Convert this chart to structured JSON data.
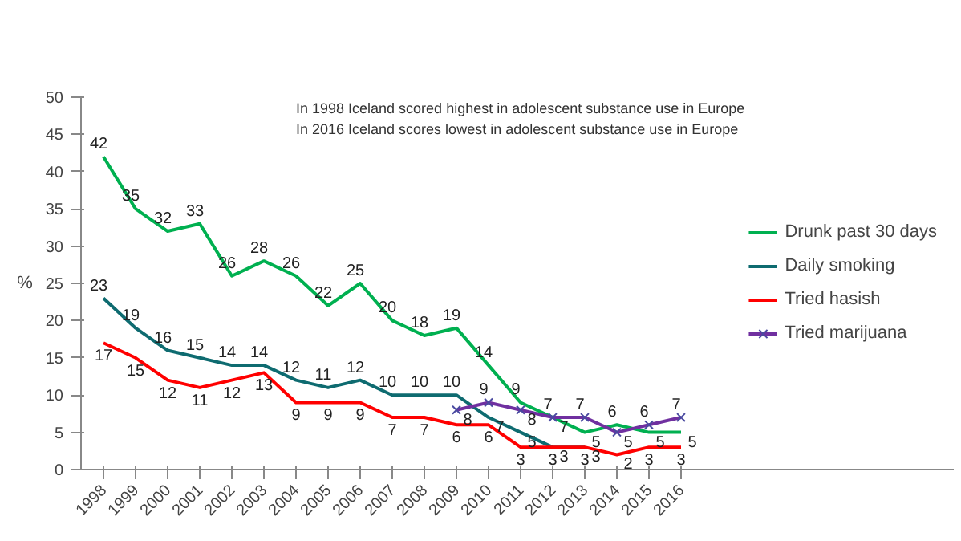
{
  "chart_data": {
    "type": "line",
    "ylabel": "%",
    "annotations": [
      "In 1998 Iceland scored highest in adolescent substance use in Europe",
      "In 2016 Iceland scores lowest in adolescent substance use in Europe"
    ],
    "categories": [
      "1998",
      "1999",
      "2000",
      "2001",
      "2002",
      "2003",
      "2004",
      "2005",
      "2006",
      "2007",
      "2008",
      "2009",
      "2010",
      "2011",
      "2012",
      "2013",
      "2014",
      "2015",
      "2016"
    ],
    "series": [
      {
        "name": "Drunk past 30 days",
        "color": "#00b050",
        "values": [
          42,
          35,
          32,
          33,
          26,
          28,
          26,
          22,
          25,
          20,
          18,
          19,
          14,
          9,
          7,
          5,
          6,
          5,
          5
        ]
      },
      {
        "name": "Daily smoking",
        "color": "#0e6b70",
        "values": [
          23,
          19,
          16,
          15,
          14,
          14,
          12,
          11,
          12,
          10,
          10,
          10,
          7,
          5,
          3,
          3,
          null,
          null,
          null
        ]
      },
      {
        "name": "Tried hasish",
        "color": "#ff0000",
        "values": [
          17,
          15,
          12,
          11,
          12,
          13,
          9,
          9,
          9,
          7,
          7,
          6,
          6,
          3,
          3,
          3,
          2,
          3,
          3
        ]
      },
      {
        "name": "Tried marijuana",
        "color": "#7030a0",
        "marker": "cross",
        "values": [
          null,
          null,
          null,
          null,
          null,
          null,
          null,
          null,
          null,
          null,
          null,
          8,
          9,
          8,
          7,
          7,
          5,
          6,
          7
        ]
      }
    ],
    "ylim": [
      0,
      50
    ],
    "yticks": [
      0,
      5,
      10,
      15,
      20,
      25,
      30,
      35,
      40,
      45,
      50
    ],
    "grid": false,
    "legend": "right",
    "data_labels": true,
    "marker": "none"
  }
}
